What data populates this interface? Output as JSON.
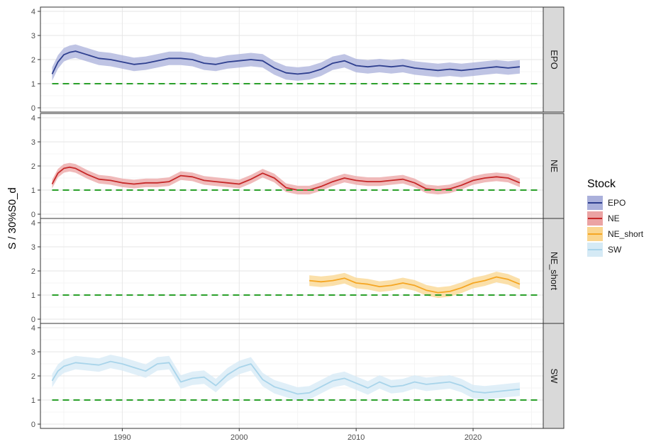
{
  "chart_data": {
    "type": "line",
    "ylabel": "S / 30%S0_d",
    "xlabel": "",
    "reference_line": 1,
    "x_ticks": [
      "1990",
      "2000",
      "2010",
      "2020"
    ],
    "x_tick_values": [
      1990,
      2000,
      2010,
      2020
    ],
    "y_ticks": [
      "0",
      "1",
      "2",
      "3",
      "4"
    ],
    "y_tick_values": [
      0,
      1,
      2,
      3,
      4
    ],
    "xlim": [
      1983,
      2026
    ],
    "ylim": [
      0,
      4
    ],
    "legend": {
      "title": "Stock",
      "placement": "right"
    },
    "colors": {
      "EPO": "#2e3f8f",
      "NE": "#c62828",
      "NE_short": "#f5a623",
      "SW": "#a8d4ea",
      "reference": "#2aa02a"
    },
    "fill_colors": {
      "EPO": "#aab0db",
      "NE": "#eba3a3",
      "NE_short": "#fad58e",
      "SW": "#d5eaf5"
    },
    "band_halfwidth": {
      "EPO": 0.28,
      "NE": 0.18,
      "NE_short": 0.22,
      "SW": 0.28
    },
    "panels": [
      {
        "name": "EPO",
        "x": [
          1984,
          1984.5,
          1985,
          1985.5,
          1986,
          1987,
          1988,
          1989,
          1990,
          1991,
          1992,
          1993,
          1994,
          1995,
          1996,
          1997,
          1998,
          1999,
          2000,
          2001,
          2002,
          2003,
          2004,
          2005,
          2006,
          2007,
          2008,
          2009,
          2010,
          2011,
          2012,
          2013,
          2014,
          2015,
          2016,
          2017,
          2018,
          2019,
          2020,
          2021,
          2022,
          2023,
          2024
        ],
        "y": [
          1.4,
          1.9,
          2.2,
          2.3,
          2.35,
          2.2,
          2.05,
          2.0,
          1.9,
          1.8,
          1.85,
          1.95,
          2.05,
          2.05,
          2.0,
          1.85,
          1.8,
          1.9,
          1.95,
          2.0,
          1.95,
          1.65,
          1.45,
          1.4,
          1.45,
          1.6,
          1.85,
          1.95,
          1.75,
          1.7,
          1.75,
          1.7,
          1.75,
          1.65,
          1.6,
          1.55,
          1.6,
          1.55,
          1.6,
          1.65,
          1.7,
          1.65,
          1.7
        ]
      },
      {
        "name": "NE",
        "x": [
          1984,
          1984.5,
          1985,
          1985.5,
          1986,
          1987,
          1988,
          1989,
          1990,
          1991,
          1992,
          1993,
          1994,
          1995,
          1996,
          1997,
          1998,
          1999,
          2000,
          2001,
          2002,
          2003,
          2004,
          2005,
          2006,
          2007,
          2008,
          2009,
          2010,
          2011,
          2012,
          2013,
          2014,
          2015,
          2016,
          2017,
          2018,
          2019,
          2020,
          2021,
          2022,
          2023,
          2024
        ],
        "y": [
          1.25,
          1.7,
          1.9,
          1.95,
          1.9,
          1.65,
          1.45,
          1.4,
          1.3,
          1.25,
          1.3,
          1.3,
          1.35,
          1.6,
          1.55,
          1.4,
          1.35,
          1.3,
          1.25,
          1.45,
          1.7,
          1.5,
          1.1,
          1.0,
          1.0,
          1.15,
          1.35,
          1.5,
          1.4,
          1.35,
          1.35,
          1.4,
          1.45,
          1.3,
          1.05,
          1.0,
          1.05,
          1.2,
          1.4,
          1.5,
          1.55,
          1.5,
          1.3
        ]
      },
      {
        "name": "NE_short",
        "x": [
          2006,
          2007,
          2008,
          2009,
          2010,
          2011,
          2012,
          2013,
          2014,
          2015,
          2016,
          2017,
          2018,
          2019,
          2020,
          2021,
          2022,
          2023,
          2024
        ],
        "y": [
          1.6,
          1.55,
          1.6,
          1.7,
          1.5,
          1.45,
          1.35,
          1.4,
          1.5,
          1.4,
          1.2,
          1.1,
          1.15,
          1.3,
          1.5,
          1.6,
          1.75,
          1.65,
          1.45
        ]
      },
      {
        "name": "SW",
        "x": [
          1984,
          1984.5,
          1985,
          1986,
          1987,
          1988,
          1989,
          1990,
          1991,
          1992,
          1993,
          1994,
          1995,
          1996,
          1997,
          1998,
          1999,
          2000,
          2001,
          2002,
          2003,
          2004,
          2005,
          2006,
          2007,
          2008,
          2009,
          2010,
          2011,
          2012,
          2013,
          2014,
          2015,
          2016,
          2017,
          2018,
          2019,
          2020,
          2021,
          2022,
          2023,
          2024
        ],
        "y": [
          1.8,
          2.2,
          2.4,
          2.55,
          2.5,
          2.45,
          2.6,
          2.5,
          2.35,
          2.2,
          2.5,
          2.55,
          1.75,
          1.9,
          1.95,
          1.6,
          2.05,
          2.35,
          2.5,
          1.85,
          1.55,
          1.4,
          1.25,
          1.3,
          1.55,
          1.8,
          1.9,
          1.7,
          1.5,
          1.75,
          1.55,
          1.6,
          1.75,
          1.65,
          1.7,
          1.75,
          1.6,
          1.35,
          1.3,
          1.35,
          1.4,
          1.45
        ]
      }
    ]
  }
}
